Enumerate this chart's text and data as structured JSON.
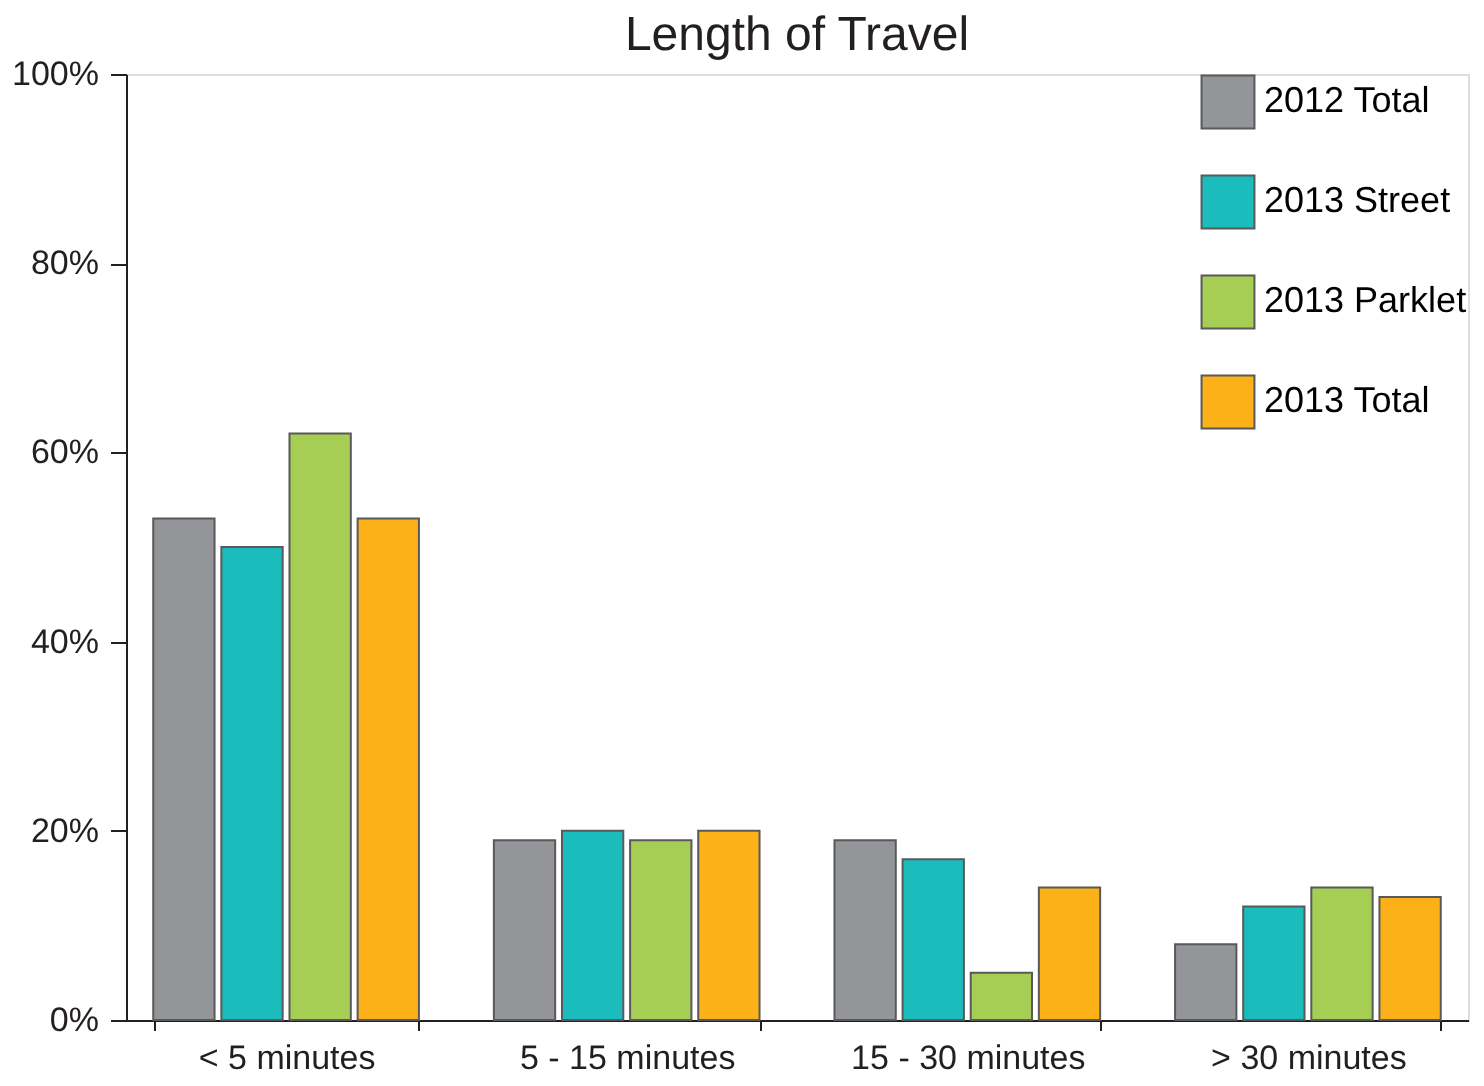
{
  "chart_data": {
    "type": "bar",
    "title": "Length of Travel",
    "categories": [
      "< 5 minutes",
      "5 - 15 minutes",
      "15 - 30 minutes",
      "> 30 minutes"
    ],
    "series": [
      {
        "name": "2012 Total",
        "color": "#939598",
        "values": [
          53,
          19,
          19,
          8
        ]
      },
      {
        "name": "2013 Street",
        "color": "#1bbcbc",
        "values": [
          50,
          20,
          17,
          12
        ]
      },
      {
        "name": "2013 Parklet",
        "color": "#a6ce55",
        "values": [
          62,
          19,
          5,
          14
        ]
      },
      {
        "name": "2013 Total",
        "color": "#fbb117",
        "values": [
          53,
          20,
          14,
          13
        ]
      }
    ],
    "ylim": [
      0,
      100
    ],
    "yticks": [
      {
        "value": 0,
        "label": "0%"
      },
      {
        "value": 20,
        "label": "20%"
      },
      {
        "value": 40,
        "label": "40%"
      },
      {
        "value": 60,
        "label": "60%"
      },
      {
        "value": 80,
        "label": "80%"
      },
      {
        "value": 100,
        "label": "100%"
      }
    ],
    "grid": false,
    "legend": "top right"
  }
}
